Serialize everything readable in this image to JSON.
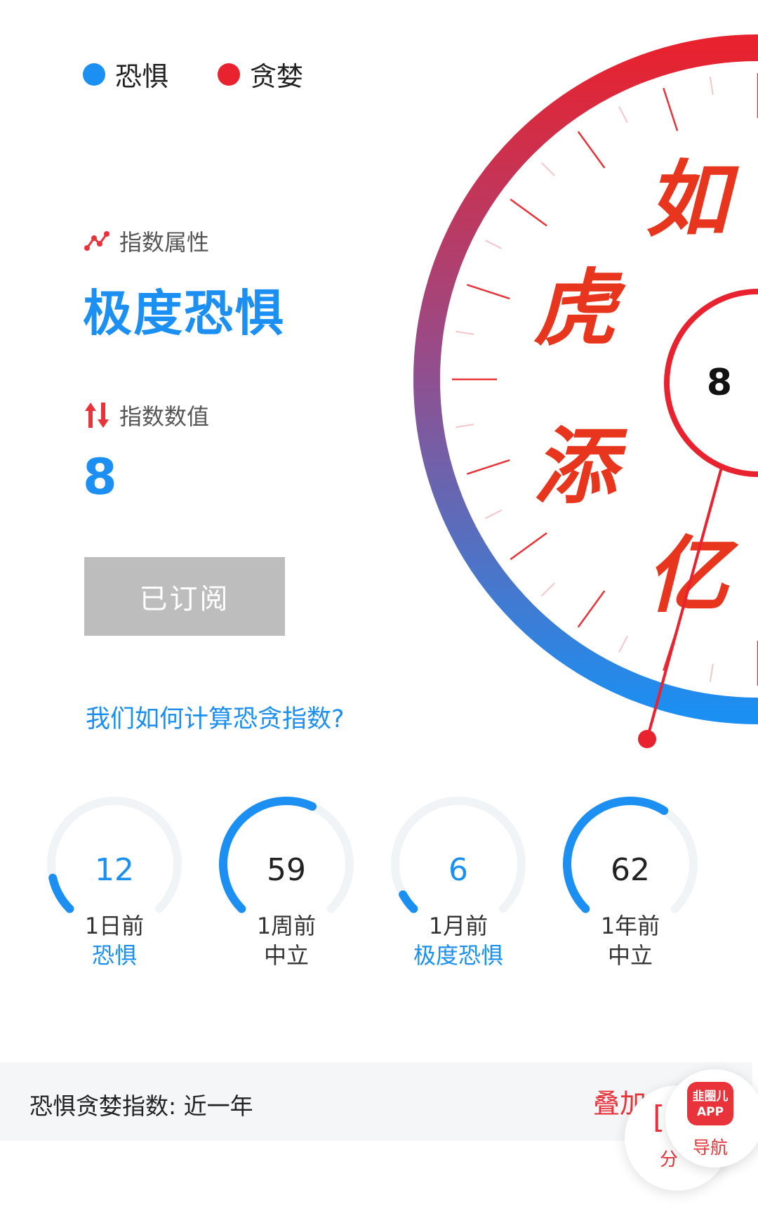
{
  "legend": {
    "fear_label": "恐惧",
    "greed_label": "贪婪",
    "fear_color": "#1b8ff2",
    "greed_color": "#e8222e"
  },
  "gauge": {
    "value": "8",
    "watermark": [
      "如",
      "虎",
      "添",
      "亿"
    ],
    "gradient_top": "#e8222e",
    "gradient_bottom": "#1b8ff2"
  },
  "attribute": {
    "label": "指数属性",
    "value": "极度恐惧"
  },
  "index": {
    "label": "指数数值",
    "value": "8"
  },
  "subscribe_button": "已订阅",
  "how_link": "我们如何计算恐贪指数?",
  "history": [
    {
      "value": "12",
      "period": "1日前",
      "status": "恐惧",
      "level": 12,
      "accent": "#1b8ff2"
    },
    {
      "value": "59",
      "period": "1周前",
      "status": "中立",
      "level": 59,
      "accent": "#333333"
    },
    {
      "value": "6",
      "period": "1月前",
      "status": "极度恐惧",
      "level": 6,
      "accent": "#1b8ff2"
    },
    {
      "value": "62",
      "period": "1年前",
      "status": "中立",
      "level": 62,
      "accent": "#333333"
    }
  ],
  "bottom_bar": {
    "title": "恐惧贪婪指数: 近一年",
    "overlay_link": "叠加",
    "partial_label": "分"
  },
  "float_nav": {
    "logo_line1": "韭圈儿",
    "logo_line2": "APP",
    "label": "导航"
  }
}
